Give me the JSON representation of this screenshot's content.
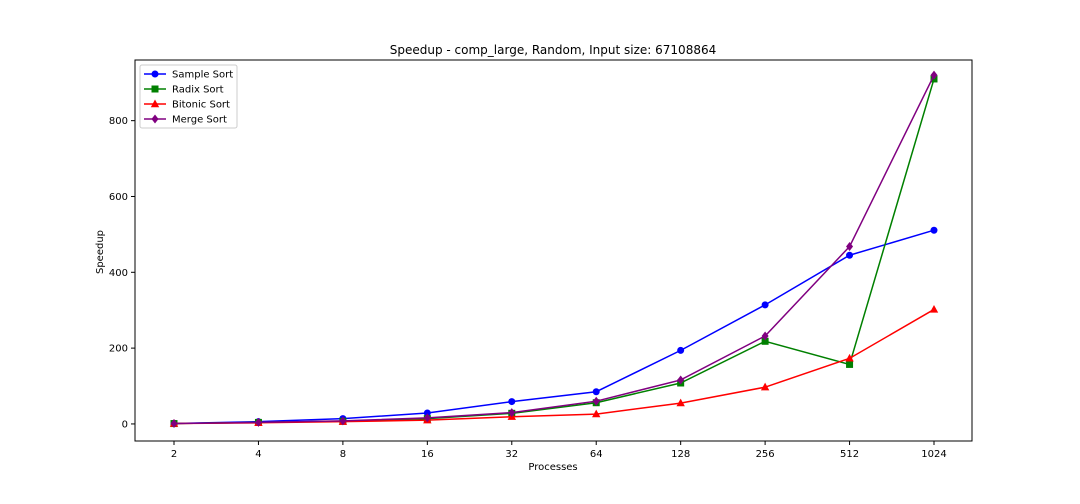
{
  "chart_data": {
    "type": "line",
    "title": "Speedup - comp_large, Random, Input size: 67108864",
    "xlabel": "Processes",
    "ylabel": "Speedup",
    "categories": [
      "2",
      "4",
      "8",
      "16",
      "32",
      "64",
      "128",
      "256",
      "512",
      "1024"
    ],
    "ylim": [
      -45,
      960
    ],
    "yticks": [
      0,
      200,
      400,
      600,
      800
    ],
    "yticks_labels": [
      "0",
      "200",
      "400",
      "600",
      "800"
    ],
    "grid": false,
    "legend_position": "top-left",
    "series": [
      {
        "name": "Sample Sort",
        "color": "#0000ff",
        "marker": "circle",
        "values": [
          1,
          6,
          14,
          29,
          59,
          85,
          194,
          314,
          445,
          511
        ]
      },
      {
        "name": "Radix Sort",
        "color": "#008000",
        "marker": "square",
        "values": [
          1,
          4,
          7,
          14,
          28,
          56,
          108,
          218,
          157,
          910
        ]
      },
      {
        "name": "Bitonic Sort",
        "color": "#ff0000",
        "marker": "triangle",
        "values": [
          1,
          3,
          6,
          10,
          19,
          26,
          55,
          97,
          173,
          302
        ]
      },
      {
        "name": "Merge Sort",
        "color": "#800080",
        "marker": "diamond",
        "values": [
          1,
          4,
          8,
          16,
          30,
          60,
          116,
          232,
          468,
          920
        ]
      }
    ]
  }
}
